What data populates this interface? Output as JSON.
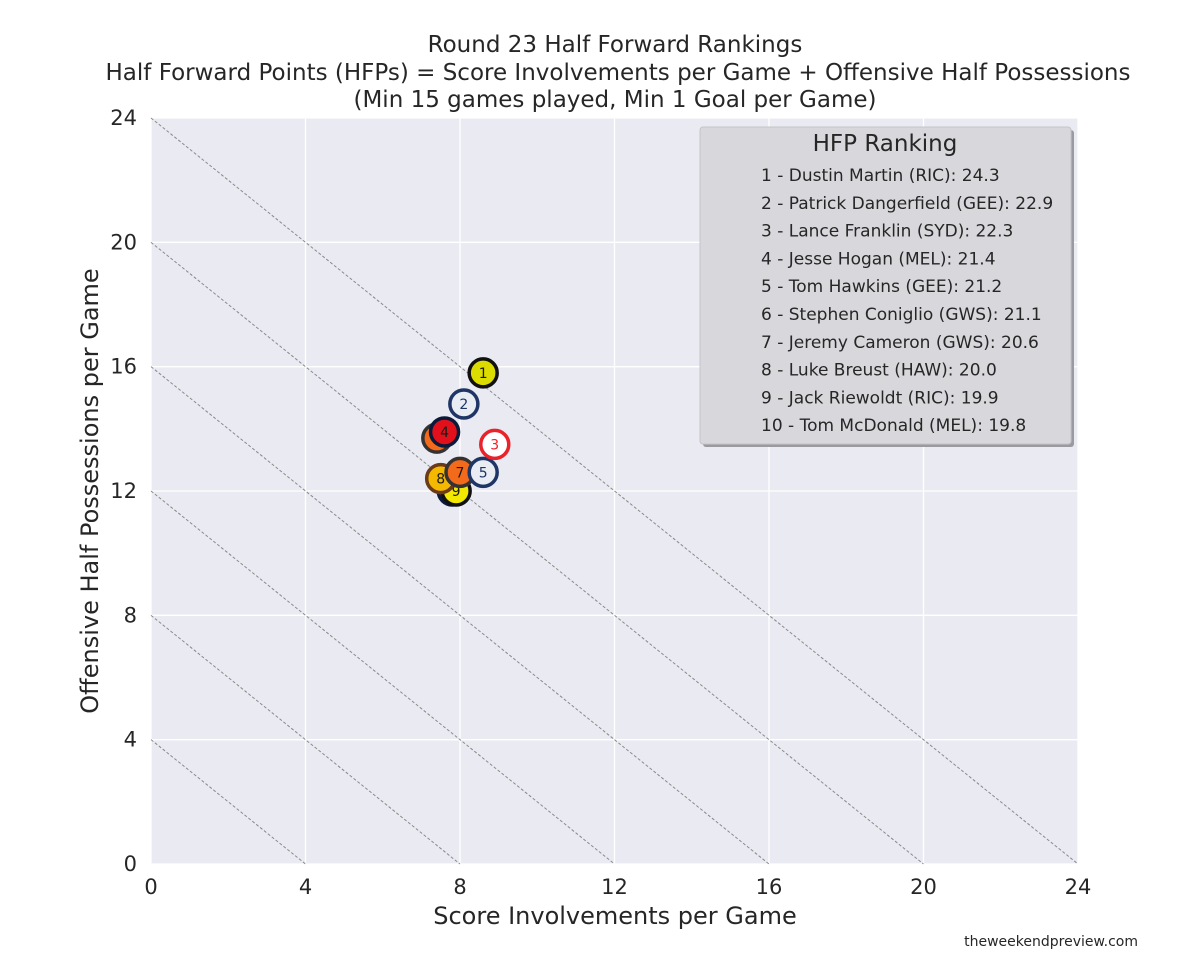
{
  "chart_data": {
    "type": "scatter",
    "title": "Round 23 Half Forward Rankings",
    "subtitle": "Half Forward Points (HFPs) = Score Involvements per Game + Offensive Half Possessions",
    "subtitle2": "(Min 15 games played, Min 1 Goal per Game)",
    "xlabel": "Score Involvements per Game",
    "ylabel": "Offensive Half Possessions per Game",
    "xlim": [
      0,
      24
    ],
    "ylim": [
      0,
      24
    ],
    "xticks": [
      "0",
      "4",
      "8",
      "12",
      "16",
      "20",
      "24"
    ],
    "yticks": [
      "0",
      "4",
      "8",
      "12",
      "16",
      "20",
      "24"
    ],
    "grid": true,
    "reference_lines_sum": [
      4,
      8,
      12,
      16,
      20,
      24
    ],
    "legend": {
      "title": "HFP Ranking",
      "placement": "top-right",
      "entries": [
        "1 - Dustin Martin (RIC): 24.3",
        "2 - Patrick Dangerfield (GEE): 22.9",
        "3 - Lance Franklin (SYD): 22.3",
        "4 - Jesse Hogan (MEL): 21.4",
        "5 - Tom Hawkins (GEE): 21.2",
        "6 - Stephen Coniglio (GWS): 21.1",
        "7 - Jeremy Cameron (GWS): 20.6",
        "8 - Luke Breust (HAW): 20.0",
        "9 - Jack Riewoldt (RIC): 19.9",
        "10 - Tom McDonald (MEL): 19.8"
      ]
    },
    "points": [
      {
        "rank": "10",
        "x": 7.8,
        "y": 12.0,
        "fill": "#e2101a",
        "stroke": "#0b1a3a",
        "text": "#1a1a1a"
      },
      {
        "rank": "9",
        "x": 7.9,
        "y": 12.0,
        "fill": "#f2e800",
        "stroke": "#111111",
        "text": "#1a1a1a"
      },
      {
        "rank": "8",
        "x": 7.5,
        "y": 12.4,
        "fill": "#f5b800",
        "stroke": "#6b3a1a",
        "text": "#1a1a1a"
      },
      {
        "rank": "7",
        "x": 8.0,
        "y": 12.6,
        "fill": "#f26a1a",
        "stroke": "#333333",
        "text": "#1a1a1a"
      },
      {
        "rank": "6",
        "x": 7.4,
        "y": 13.7,
        "fill": "#f26a1a",
        "stroke": "#333333",
        "text": "#1a1a1a"
      },
      {
        "rank": "5",
        "x": 8.6,
        "y": 12.6,
        "fill": "#e9ecf2",
        "stroke": "#1e3566",
        "text": "#1e3566"
      },
      {
        "rank": "4",
        "x": 7.6,
        "y": 13.9,
        "fill": "#e2101a",
        "stroke": "#0b1a3a",
        "text": "#1a1a1a"
      },
      {
        "rank": "3",
        "x": 8.9,
        "y": 13.5,
        "fill": "#ffffff",
        "stroke": "#e8232a",
        "text": "#e8232a"
      },
      {
        "rank": "2",
        "x": 8.1,
        "y": 14.8,
        "fill": "#e9ecf2",
        "stroke": "#1e3566",
        "text": "#1e3566"
      },
      {
        "rank": "1",
        "x": 8.6,
        "y": 15.8,
        "fill": "#dcdc00",
        "stroke": "#111111",
        "text": "#1a1a1a"
      }
    ],
    "colors": {
      "plot_background": "#eaeaf2",
      "grid": "#ffffff",
      "reference_line": "#8a8a8a"
    }
  },
  "source": "theweekendpreview.com"
}
